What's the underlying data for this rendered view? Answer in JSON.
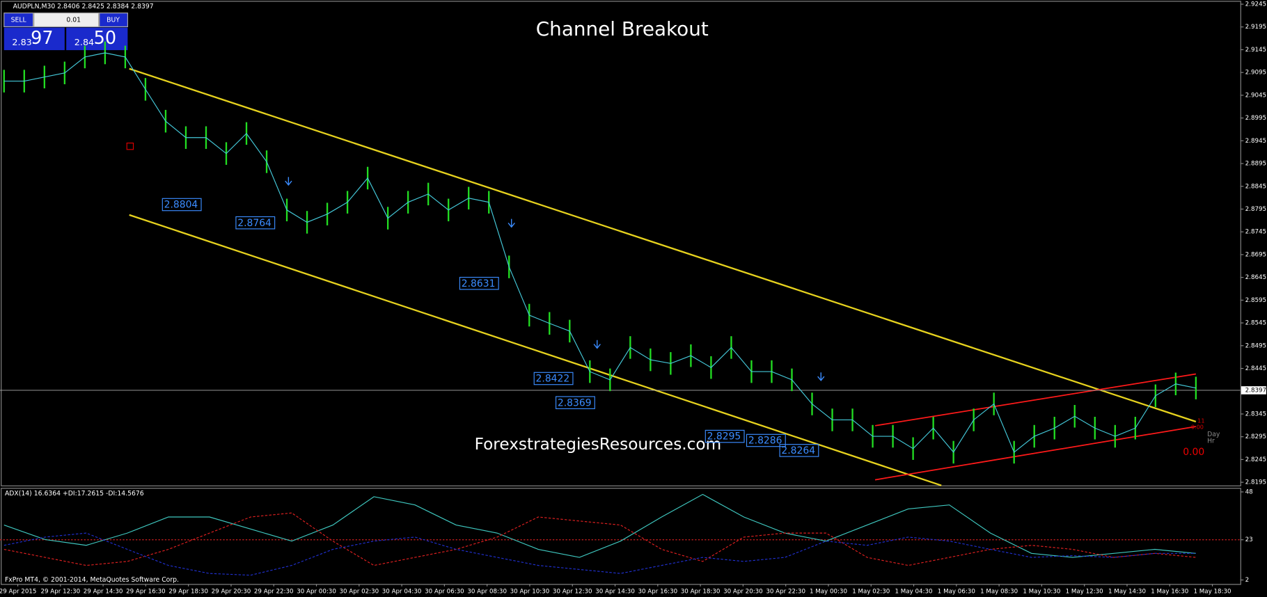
{
  "symbol_info": "AUDPLN,M30  2.8406 2.8425 2.8384 2.8397",
  "title": "Channel Breakout",
  "watermark": "ForexstrategiesResources.com",
  "trade_panel": {
    "sell": "SELL",
    "lot": "0.01",
    "buy": "BUY",
    "sell_big": "2.83",
    "sell_pips": "97",
    "buy_big": "2.84",
    "buy_pips": "50"
  },
  "price_axis": {
    "ylim": [
      2.8188,
      2.9254
    ],
    "ticks": [
      2.9245,
      2.9195,
      2.9145,
      2.9095,
      2.9045,
      2.8995,
      2.8945,
      2.8895,
      2.8845,
      2.8795,
      2.8745,
      2.8695,
      2.8645,
      2.8595,
      2.8545,
      2.8495,
      2.8445,
      2.8345,
      2.8295,
      2.8245,
      2.8195
    ],
    "current": 2.8397
  },
  "price_series": [
    2.9076,
    2.9076,
    2.9085,
    2.9094,
    2.9129,
    2.9138,
    2.9129,
    2.9058,
    2.8988,
    2.8952,
    2.8952,
    2.8917,
    2.8961,
    2.8899,
    2.8793,
    2.8766,
    2.8784,
    2.881,
    2.8863,
    2.8775,
    2.881,
    2.8828,
    2.8793,
    2.8819,
    2.881,
    2.8668,
    2.8562,
    2.8544,
    2.8527,
    2.8438,
    2.842,
    2.8491,
    2.8464,
    2.8456,
    2.8473,
    2.8447,
    2.8491,
    2.8438,
    2.8438,
    2.842,
    2.8367,
    2.8332,
    2.8332,
    2.8296,
    2.8296,
    2.8269,
    2.8314,
    2.8261,
    2.8332,
    2.8367,
    2.8261,
    2.8296,
    2.8314,
    2.834,
    2.8314,
    2.8296,
    2.8314,
    2.8385,
    2.8411,
    2.8402
  ],
  "price_labels": [
    {
      "text": "2.8804",
      "value": 2.8804
    },
    {
      "text": "2.8764",
      "value": 2.8764
    },
    {
      "text": "2.8631",
      "value": 2.8631
    },
    {
      "text": "2.8422",
      "value": 2.8422
    },
    {
      "text": "2.8369",
      "value": 2.8369
    },
    {
      "text": "2.8295",
      "value": 2.8295
    },
    {
      "text": "2.8286",
      "value": 2.8286
    },
    {
      "text": "2.8264",
      "value": 2.8264
    }
  ],
  "side_labels": {
    "day": "Day",
    "hr": "Hr",
    "small_count": "11",
    "small_value": "0.00",
    "timer": "0.00"
  },
  "time_axis": [
    "29 Apr 2015",
    "29 Apr 12:30",
    "29 Apr 14:30",
    "29 Apr 16:30",
    "29 Apr 18:30",
    "29 Apr 20:30",
    "29 Apr 22:30",
    "30 Apr 00:30",
    "30 Apr 02:30",
    "30 Apr 04:30",
    "30 Apr 06:30",
    "30 Apr 08:30",
    "30 Apr 10:30",
    "30 Apr 12:30",
    "30 Apr 14:30",
    "30 Apr 16:30",
    "30 Apr 18:30",
    "30 Apr 20:30",
    "30 Apr 22:30",
    "1 May 00:30",
    "1 May 02:30",
    "1 May 04:30",
    "1 May 06:30",
    "1 May 08:30",
    "1 May 10:30",
    "1 May 12:30",
    "1 May 14:30",
    "1 May 16:30",
    "1 May 18:30"
  ],
  "indicator": {
    "label": "ADX(14) 16.6364 +DI:17.2615 -DI:14.5676",
    "ylim": [
      -0.1,
      50.1
    ],
    "ticks": [
      48,
      23,
      2
    ],
    "level": 23,
    "adx": [
      30.7,
      23.1,
      20.1,
      26.5,
      34.9,
      34.9,
      28.6,
      22.3,
      30.7,
      45.5,
      41.2,
      30.7,
      26.5,
      18.0,
      13.8,
      22.3,
      34.9,
      46.7,
      34.9,
      26.5,
      22.3,
      30.7,
      39.1,
      41.2,
      26.5,
      15.9,
      13.8,
      15.9,
      18.0,
      15.9
    ],
    "plus_di": [
      18.0,
      13.8,
      9.6,
      11.7,
      18.0,
      26.5,
      34.9,
      37.0,
      22.3,
      9.6,
      13.8,
      18.0,
      24.4,
      34.9,
      32.8,
      30.7,
      18.0,
      11.7,
      24.4,
      26.5,
      26.5,
      13.8,
      9.6,
      13.8,
      18.0,
      20.1,
      18.0,
      13.8,
      15.9,
      13.8
    ],
    "minus_di": [
      20.1,
      24.4,
      26.5,
      18.0,
      9.6,
      5.4,
      4.5,
      9.6,
      18.0,
      22.3,
      24.4,
      18.0,
      13.8,
      9.6,
      7.5,
      5.4,
      9.6,
      13.8,
      11.7,
      13.8,
      22.3,
      20.1,
      24.4,
      22.3,
      18.0,
      13.8,
      14.7,
      13.8,
      15.9,
      15.9
    ]
  },
  "copyright": "FxPro MT4, © 2001-2014, MetaQuotes Software Corp."
}
